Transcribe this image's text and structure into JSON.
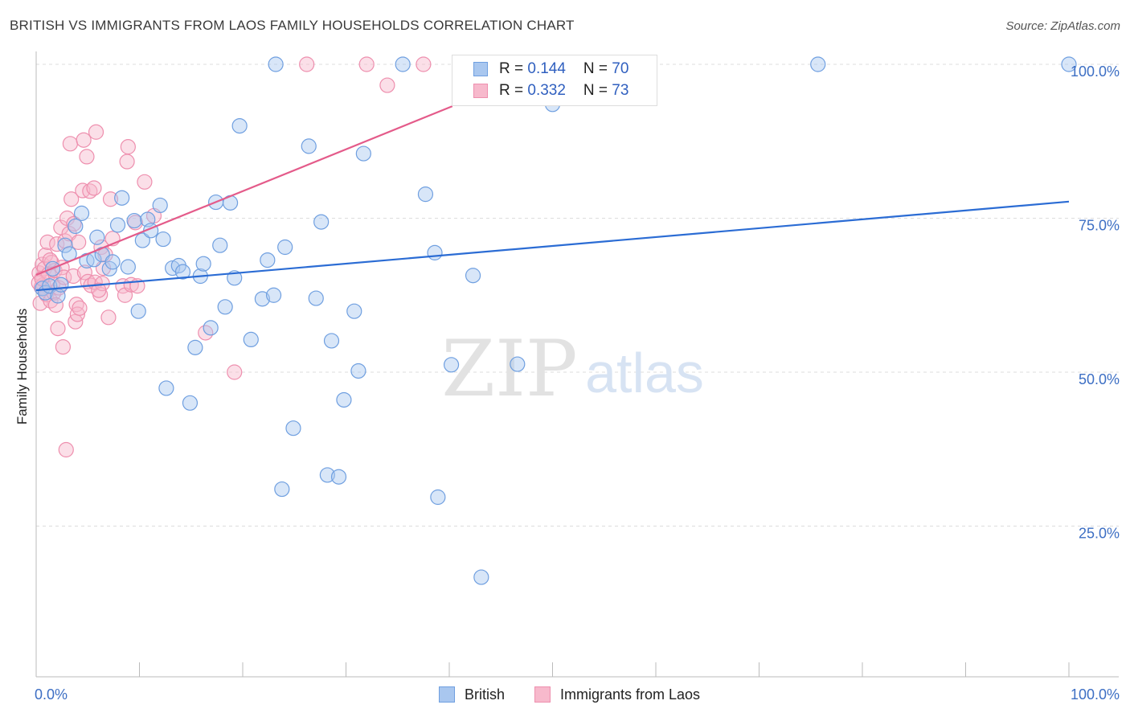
{
  "header": {
    "title": "BRITISH VS IMMIGRANTS FROM LAOS FAMILY HOUSEHOLDS CORRELATION CHART",
    "source": "Source: ZipAtlas.com"
  },
  "watermark": {
    "zip": "ZIP",
    "atlas": "atlas"
  },
  "legend": {
    "british": {
      "r_label": "R = ",
      "r_value": "0.144",
      "n_label": "N = ",
      "n_value": "70"
    },
    "laos": {
      "r_label": "R = ",
      "r_value": "0.332",
      "n_label": "N = ",
      "n_value": "73"
    }
  },
  "bottom_legend": {
    "british": "British",
    "laos": "Immigrants from Laos"
  },
  "colors": {
    "british_fill": "#a9c7ef",
    "british_stroke": "#6f9fe0",
    "british_line": "#2b6cd4",
    "laos_fill": "#f7b9cc",
    "laos_stroke": "#ee8fae",
    "laos_line": "#e45b8a",
    "tick_text": "#3d6fc4",
    "grid": "#dddddd"
  },
  "chart_data": {
    "type": "scatter",
    "title": "BRITISH VS IMMIGRANTS FROM LAOS FAMILY HOUSEHOLDS CORRELATION CHART",
    "xlabel": "",
    "ylabel": "Family Households",
    "xlim": [
      0,
      100
    ],
    "ylim": [
      0,
      102
    ],
    "x_tick_labels": [
      "0.0%",
      "100.0%"
    ],
    "y_ticks": [
      25,
      50,
      75,
      100
    ],
    "y_tick_labels": [
      "25.0%",
      "50.0%",
      "75.0%",
      "100.0%"
    ],
    "series": [
      {
        "name": "British",
        "trend": {
          "x0": 0,
          "y0": 63.3,
          "x1": 100,
          "y1": 77.7
        },
        "points": [
          [
            0.6,
            63.6
          ],
          [
            0.9,
            62.9
          ],
          [
            1.3,
            64.0
          ],
          [
            1.6,
            66.8
          ],
          [
            2.1,
            62.4
          ],
          [
            2.4,
            64.2
          ],
          [
            2.8,
            70.6
          ],
          [
            3.2,
            69.2
          ],
          [
            3.8,
            73.7
          ],
          [
            4.4,
            75.8
          ],
          [
            4.9,
            68.1
          ],
          [
            5.6,
            68.3
          ],
          [
            5.9,
            71.9
          ],
          [
            6.4,
            69.1
          ],
          [
            7.1,
            66.8
          ],
          [
            7.4,
            67.9
          ],
          [
            7.9,
            73.9
          ],
          [
            8.3,
            78.3
          ],
          [
            8.9,
            67.1
          ],
          [
            9.5,
            74.6
          ],
          [
            9.9,
            59.9
          ],
          [
            10.3,
            71.4
          ],
          [
            10.8,
            74.8
          ],
          [
            11.1,
            73.0
          ],
          [
            12.0,
            77.1
          ],
          [
            12.3,
            71.6
          ],
          [
            12.6,
            47.4
          ],
          [
            13.2,
            66.9
          ],
          [
            13.8,
            67.3
          ],
          [
            14.2,
            66.3
          ],
          [
            14.9,
            45.0
          ],
          [
            15.4,
            54.0
          ],
          [
            15.9,
            65.6
          ],
          [
            16.2,
            67.6
          ],
          [
            16.9,
            57.2
          ],
          [
            17.4,
            77.6
          ],
          [
            17.8,
            70.6
          ],
          [
            18.3,
            60.6
          ],
          [
            18.8,
            77.5
          ],
          [
            19.2,
            65.3
          ],
          [
            19.7,
            90.0
          ],
          [
            20.8,
            55.3
          ],
          [
            21.9,
            61.9
          ],
          [
            22.4,
            68.2
          ],
          [
            23.0,
            62.5
          ],
          [
            23.2,
            100.0
          ],
          [
            23.8,
            31.0
          ],
          [
            24.1,
            70.3
          ],
          [
            24.9,
            40.9
          ],
          [
            26.4,
            86.7
          ],
          [
            27.1,
            62.0
          ],
          [
            27.6,
            74.4
          ],
          [
            28.2,
            33.3
          ],
          [
            28.6,
            55.1
          ],
          [
            29.3,
            33.0
          ],
          [
            29.8,
            45.5
          ],
          [
            30.8,
            59.9
          ],
          [
            31.2,
            50.2
          ],
          [
            31.7,
            85.5
          ],
          [
            35.5,
            100.0
          ],
          [
            37.7,
            78.9
          ],
          [
            38.6,
            69.4
          ],
          [
            38.9,
            29.7
          ],
          [
            40.2,
            51.2
          ],
          [
            42.3,
            65.7
          ],
          [
            43.1,
            16.7
          ],
          [
            46.6,
            51.3
          ],
          [
            50.0,
            93.5
          ],
          [
            75.7,
            100.0
          ],
          [
            100.0,
            100.0
          ]
        ]
      },
      {
        "name": "Immigrants from Laos",
        "trend": {
          "x0": 0,
          "y0": 65.8,
          "x1": 40.3,
          "y1": 93.2
        },
        "points": [
          [
            0.3,
            66.1
          ],
          [
            0.4,
            61.2
          ],
          [
            0.5,
            63.8
          ],
          [
            0.6,
            67.5
          ],
          [
            0.7,
            64.2
          ],
          [
            0.8,
            66.8
          ],
          [
            0.9,
            69.0
          ],
          [
            1.0,
            62.6
          ],
          [
            1.1,
            71.1
          ],
          [
            1.2,
            65.9
          ],
          [
            1.4,
            61.6
          ],
          [
            1.5,
            67.8
          ],
          [
            1.6,
            64.3
          ],
          [
            1.7,
            62.9
          ],
          [
            1.8,
            66.5
          ],
          [
            1.9,
            60.9
          ],
          [
            2.0,
            70.8
          ],
          [
            2.1,
            57.1
          ],
          [
            2.2,
            63.7
          ],
          [
            2.4,
            73.5
          ],
          [
            2.5,
            67.0
          ],
          [
            2.6,
            54.1
          ],
          [
            2.7,
            65.4
          ],
          [
            2.8,
            71.3
          ],
          [
            2.9,
            37.4
          ],
          [
            3.0,
            75.0
          ],
          [
            3.2,
            72.5
          ],
          [
            3.3,
            87.1
          ],
          [
            3.4,
            78.1
          ],
          [
            3.6,
            65.6
          ],
          [
            3.8,
            58.2
          ],
          [
            3.9,
            61.0
          ],
          [
            4.0,
            59.4
          ],
          [
            4.1,
            71.1
          ],
          [
            4.2,
            60.4
          ],
          [
            4.5,
            79.5
          ],
          [
            4.6,
            87.7
          ],
          [
            4.7,
            66.2
          ],
          [
            4.9,
            85.0
          ],
          [
            5.0,
            64.7
          ],
          [
            5.2,
            79.4
          ],
          [
            5.3,
            64.1
          ],
          [
            5.6,
            79.9
          ],
          [
            5.7,
            64.6
          ],
          [
            5.8,
            89.0
          ],
          [
            6.2,
            62.6
          ],
          [
            6.3,
            70.3
          ],
          [
            6.4,
            64.4
          ],
          [
            6.5,
            66.9
          ],
          [
            6.7,
            69.1
          ],
          [
            7.0,
            58.9
          ],
          [
            7.2,
            78.1
          ],
          [
            7.4,
            71.7
          ],
          [
            8.4,
            64.0
          ],
          [
            8.6,
            62.5
          ],
          [
            8.8,
            84.2
          ],
          [
            8.9,
            86.6
          ],
          [
            9.2,
            64.2
          ],
          [
            9.6,
            74.3
          ],
          [
            9.8,
            64.0
          ],
          [
            10.5,
            80.9
          ],
          [
            11.4,
            75.4
          ],
          [
            16.4,
            56.4
          ],
          [
            19.2,
            50.0
          ],
          [
            26.2,
            100.0
          ],
          [
            32.0,
            100.0
          ],
          [
            34.0,
            96.6
          ],
          [
            37.5,
            100.0
          ],
          [
            0.25,
            64.5
          ],
          [
            0.55,
            65.2
          ],
          [
            1.35,
            68.2
          ],
          [
            3.65,
            74.1
          ],
          [
            6.05,
            63.3
          ]
        ]
      }
    ]
  }
}
